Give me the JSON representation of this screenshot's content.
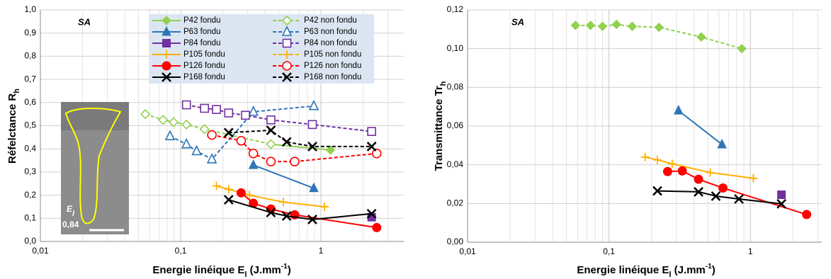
{
  "chart_data": [
    {
      "type": "line",
      "xscale": "log",
      "grid": true,
      "minor_grid": true,
      "annotation": "SA",
      "inset_label": [
        "E",
        "l"
      ],
      "inset_value": "0,84",
      "x_label": [
        "Energie linéique E",
        "l",
        " (J.mm",
        "-1",
        ")"
      ],
      "y_label": [
        "Réfelctance R",
        "h"
      ],
      "xlim": [
        0.01,
        3.9
      ],
      "ylim": [
        0,
        1.0
      ],
      "xticks": [
        {
          "value": 0.01,
          "label": "0,01"
        },
        {
          "value": 0.1,
          "label": "0,1"
        },
        1
      ],
      "yticks": [
        {
          "value": 0,
          "label": "0,0"
        },
        {
          "value": 0.1,
          "label": "0,1"
        },
        {
          "value": 0.2,
          "label": "0,2"
        },
        {
          "value": 0.3,
          "label": "0,3"
        },
        {
          "value": 0.4,
          "label": "0,4"
        },
        {
          "value": 0.5,
          "label": "0,5"
        },
        {
          "value": 0.6,
          "label": "0,6"
        },
        {
          "value": 0.7,
          "label": "0,7"
        },
        {
          "value": 0.8,
          "label": "0,8"
        },
        {
          "value": 0.9,
          "label": "0,9"
        },
        {
          "value": 1.0,
          "label": "1,0"
        }
      ],
      "series": [
        {
          "name": "P42 fondu",
          "color": "#92d050",
          "marker": "diamond",
          "filled": true,
          "dashed": false,
          "x": [
            0.44,
            1.17
          ],
          "values": [
            0.42,
            0.395
          ]
        },
        {
          "name": "P42 non fondu",
          "color": "#92d050",
          "marker": "diamond",
          "filled": false,
          "dashed": true,
          "x": [
            0.056,
            0.075,
            0.089,
            0.11,
            0.148,
            0.44
          ],
          "values": [
            0.55,
            0.525,
            0.515,
            0.505,
            0.485,
            0.42
          ]
        },
        {
          "name": "P63 fondu",
          "color": "#2e75b6",
          "marker": "triangle",
          "filled": true,
          "dashed": false,
          "x": [
            0.33,
            0.89
          ],
          "values": [
            0.33,
            0.23
          ]
        },
        {
          "name": "P63 non fondu",
          "color": "#2e75b6",
          "marker": "triangle",
          "filled": false,
          "dashed": true,
          "x": [
            0.084,
            0.11,
            0.13,
            0.167,
            0.33,
            0.89
          ],
          "values": [
            0.455,
            0.42,
            0.39,
            0.355,
            0.56,
            0.585
          ]
        },
        {
          "name": "P84 fondu",
          "color": "#7030a0",
          "marker": "square",
          "filled": true,
          "dashed": false,
          "x": [
            2.3
          ],
          "values": [
            0.105
          ]
        },
        {
          "name": "P84 non fondu",
          "color": "#7030a0",
          "marker": "square",
          "filled": false,
          "dashed": true,
          "x": [
            0.11,
            0.148,
            0.18,
            0.22,
            0.29,
            0.44,
            0.87,
            2.3
          ],
          "values": [
            0.59,
            0.575,
            0.57,
            0.555,
            0.545,
            0.525,
            0.505,
            0.475
          ]
        },
        {
          "name": "P105 fondu",
          "color": "#ffb000",
          "marker": "plus",
          "filled": true,
          "dashed": false,
          "x": [
            0.18,
            0.22,
            0.31,
            0.54,
            1.06
          ],
          "values": [
            0.24,
            0.225,
            0.2,
            0.17,
            0.15
          ]
        },
        {
          "name": "P105 non fondu",
          "color": "#ffb000",
          "marker": "plus",
          "filled": false,
          "dashed": true,
          "x": [],
          "values": []
        },
        {
          "name": "P126 fondu",
          "color": "#ff0000",
          "marker": "circle",
          "filled": true,
          "dashed": false,
          "x": [
            0.27,
            0.33,
            0.44,
            0.65,
            2.5
          ],
          "values": [
            0.21,
            0.165,
            0.14,
            0.115,
            0.06
          ]
        },
        {
          "name": "P126 non fondu",
          "color": "#ff0000",
          "marker": "circle",
          "filled": false,
          "dashed": true,
          "x": [
            0.167,
            0.27,
            0.33,
            0.44,
            0.65,
            2.5
          ],
          "values": [
            0.46,
            0.435,
            0.38,
            0.345,
            0.345,
            0.38
          ]
        },
        {
          "name": "P168 fondu",
          "color": "#000000",
          "marker": "x",
          "filled": true,
          "dashed": false,
          "x": [
            0.22,
            0.44,
            0.57,
            0.87,
            2.3
          ],
          "values": [
            0.18,
            0.125,
            0.11,
            0.095,
            0.12
          ]
        },
        {
          "name": "P168 non fondu",
          "color": "#000000",
          "marker": "x",
          "filled": false,
          "dashed": true,
          "x": [
            0.22,
            0.44,
            0.57,
            0.87,
            2.3
          ],
          "values": [
            0.47,
            0.48,
            0.43,
            0.41,
            0.41
          ]
        }
      ]
    },
    {
      "type": "line",
      "xscale": "log",
      "grid": true,
      "minor_grid": true,
      "annotation": "SA",
      "x_label": [
        "Energie linéique E",
        "l",
        " (J.mm",
        "-1",
        ")"
      ],
      "y_label": [
        "Transmittance Tr",
        "h"
      ],
      "xlim": [
        0.01,
        3.2
      ],
      "ylim": [
        0,
        0.12
      ],
      "xticks": [
        {
          "value": 0.01,
          "label": "0,01"
        },
        {
          "value": 0.1,
          "label": "0,1"
        },
        1
      ],
      "yticks": [
        {
          "value": 0,
          "label": "0,00"
        },
        {
          "value": 0.02,
          "label": "0,02"
        },
        {
          "value": 0.04,
          "label": "0,04"
        },
        {
          "value": 0.06,
          "label": "0,06"
        },
        {
          "value": 0.08,
          "label": "0,08"
        },
        {
          "value": 0.1,
          "label": "0,10"
        },
        {
          "value": 0.12,
          "label": "0,12"
        }
      ],
      "series": [
        {
          "color": "#92d050",
          "marker": "diamond",
          "filled": true,
          "dashed": true,
          "x": [
            0.058,
            0.074,
            0.09,
            0.113,
            0.146,
            0.226,
            0.45,
            0.87
          ],
          "values": [
            0.112,
            0.112,
            0.1115,
            0.1125,
            0.1115,
            0.111,
            0.106,
            0.1
          ]
        },
        {
          "color": "#2e75b6",
          "marker": "triangle",
          "filled": true,
          "dashed": false,
          "x": [
            0.31,
            0.63
          ],
          "values": [
            0.068,
            0.0505
          ]
        },
        {
          "color": "#7030a0",
          "marker": "square",
          "filled": true,
          "dashed": false,
          "x": [
            1.66
          ],
          "values": [
            0.0245
          ]
        },
        {
          "color": "#ffb000",
          "marker": "plus",
          "filled": true,
          "dashed": false,
          "x": [
            0.18,
            0.22,
            0.28,
            0.52,
            1.05
          ],
          "values": [
            0.044,
            0.0425,
            0.0405,
            0.036,
            0.033
          ]
        },
        {
          "color": "#ff0000",
          "marker": "circle",
          "filled": true,
          "dashed": false,
          "x": [
            0.26,
            0.33,
            0.43,
            0.64,
            2.5
          ],
          "values": [
            0.0365,
            0.0368,
            0.0325,
            0.028,
            0.0143
          ]
        },
        {
          "color": "#000000",
          "marker": "x",
          "filled": true,
          "dashed": false,
          "x": [
            0.22,
            0.43,
            0.57,
            0.83,
            1.66
          ],
          "values": [
            0.0265,
            0.026,
            0.0238,
            0.0223,
            0.0198
          ]
        }
      ]
    }
  ]
}
